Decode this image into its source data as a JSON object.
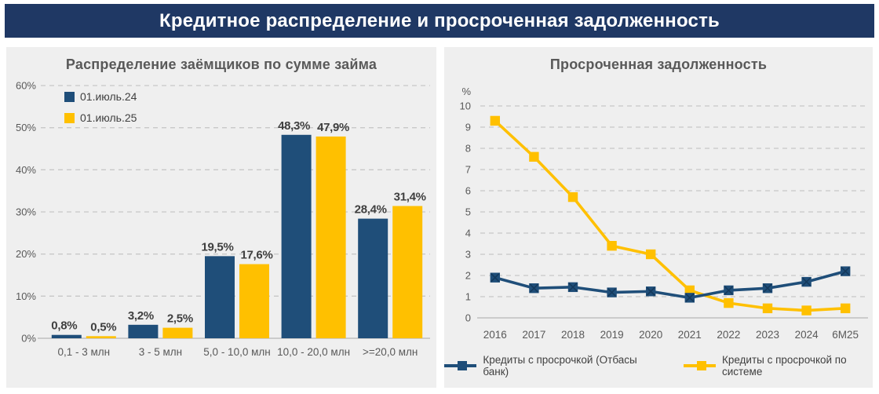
{
  "header": {
    "title": "Кредитное распределение и просроченная задолженность"
  },
  "colors": {
    "header_bg": "#1F3864",
    "panel_bg": "#EFEFEF",
    "series_blue": "#1F4E79",
    "series_yellow": "#FFC000",
    "gridline": "#C8C8C8",
    "axis_line": "#BFBFBF",
    "title_text": "#595959",
    "tick_text": "#595959",
    "value_label_text": "#3F3F3F"
  },
  "chart_data": [
    {
      "type": "bar",
      "title": "Распределение заёмщиков по сумме займа",
      "categories": [
        "0,1 - 3 млн",
        "3 - 5 млн",
        "5,0 - 10,0 млн",
        "10,0 - 20,0 млн",
        ">=20,0 млн"
      ],
      "series": [
        {
          "name": "01.июль.24",
          "color": "#1F4E79",
          "values": [
            0.8,
            3.2,
            19.5,
            48.3,
            28.4
          ],
          "labels": [
            "0,8%",
            "3,2%",
            "19,5%",
            "48,3%",
            "28,4%"
          ]
        },
        {
          "name": "01.июль.25",
          "color": "#FFC000",
          "values": [
            0.5,
            2.5,
            17.6,
            47.9,
            31.4
          ],
          "labels": [
            "0,5%",
            "2,5%",
            "17,6%",
            "47,9%",
            "31,4%"
          ]
        }
      ],
      "ylim": [
        0,
        60
      ],
      "ytick_step": 10,
      "ytick_labels": [
        "0%",
        "10%",
        "20%",
        "30%",
        "40%",
        "50%",
        "60%"
      ],
      "grid": "dashed horizontal",
      "legend_position": "top-left-inside"
    },
    {
      "type": "line",
      "title": "Просроченная задолженность",
      "unit_label": "%",
      "x": [
        "2016",
        "2017",
        "2018",
        "2019",
        "2020",
        "2021",
        "2022",
        "2023",
        "2024",
        "6M25"
      ],
      "series": [
        {
          "name": "Кредиты с просрочкой (Отбасы банк)",
          "color": "#1F4E79",
          "marker": "square-x",
          "values": [
            1.9,
            1.4,
            1.45,
            1.2,
            1.25,
            0.95,
            1.3,
            1.4,
            1.7,
            2.2
          ]
        },
        {
          "name": "Кредиты с просрочкой по системе",
          "color": "#FFC000",
          "marker": "square",
          "values": [
            9.3,
            7.6,
            5.7,
            3.4,
            3.0,
            1.3,
            0.7,
            0.45,
            0.35,
            0.45
          ]
        }
      ],
      "ylim": [
        0,
        10
      ],
      "ytick_step": 1,
      "grid": "dashed horizontal",
      "legend_position": "bottom"
    }
  ]
}
